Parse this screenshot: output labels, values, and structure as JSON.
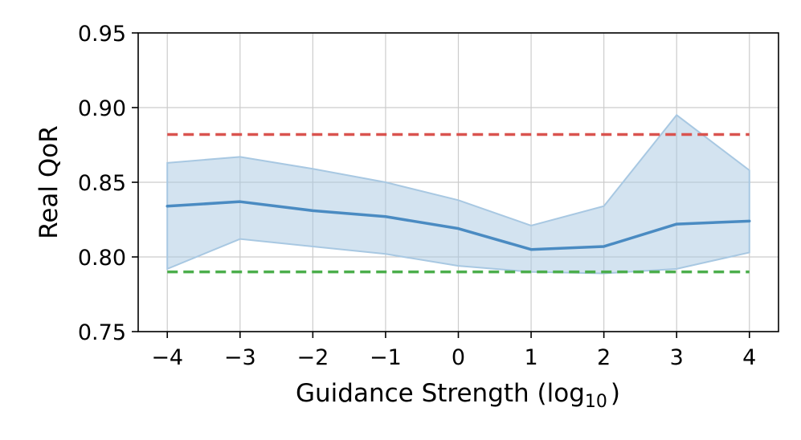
{
  "chart_data": {
    "type": "line",
    "xlabel": "Guidance Strength (log",
    "xlabel_subscript": "10",
    "xlabel_suffix": ")",
    "ylabel": "Real QoR",
    "x": [
      -4,
      -3,
      -2,
      -1,
      0,
      1,
      2,
      3,
      4
    ],
    "x_tick_labels": [
      "−4",
      "−3",
      "−2",
      "−1",
      "0",
      "1",
      "2",
      "3",
      "4"
    ],
    "y_tick_labels": [
      "0.75",
      "0.80",
      "0.85",
      "0.90",
      "0.95"
    ],
    "y_ticks": [
      0.75,
      0.8,
      0.85,
      0.9,
      0.95
    ],
    "xlim": [
      -4.4,
      4.4
    ],
    "ylim": [
      0.75,
      0.95
    ],
    "grid": true,
    "series": [
      {
        "values": [
          0.834,
          0.837,
          0.831,
          0.827,
          0.819,
          0.805,
          0.807,
          0.822,
          0.824
        ],
        "color": "#4a8bc2",
        "style": "solid"
      }
    ],
    "band": {
      "upper": [
        0.863,
        0.867,
        0.859,
        0.85,
        0.838,
        0.821,
        0.834,
        0.895,
        0.858
      ],
      "lower": [
        0.792,
        0.812,
        0.807,
        0.802,
        0.794,
        0.79,
        0.789,
        0.792,
        0.803
      ],
      "color": "#a8c8e2"
    },
    "reference_lines": [
      {
        "y": 0.882,
        "color": "#d9534f",
        "style": "dashed"
      },
      {
        "y": 0.79,
        "color": "#4cae4c",
        "style": "dashed"
      }
    ]
  }
}
